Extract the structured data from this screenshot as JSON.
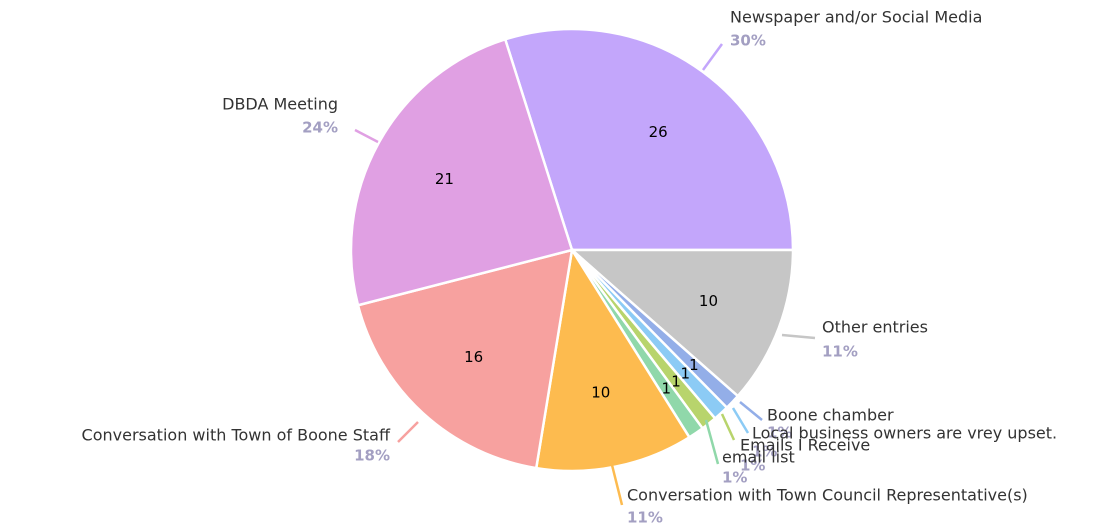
{
  "chart_data": {
    "type": "pie",
    "categories": [
      "Newspaper and/or Social Media",
      "Other entries",
      "Boone chamber",
      "Local business owners are vrey upset.",
      "Emails I Receive",
      "email list",
      "Conversation with Town Council Representative(s)",
      "Conversation with Town of Boone Staff",
      "DBDA Meeting"
    ],
    "values": [
      26,
      10,
      1,
      1,
      1,
      1,
      10,
      16,
      21
    ],
    "percent_labels": [
      "30%",
      "11%",
      "1%",
      "1%",
      "1%",
      "1%",
      "11%",
      "18%",
      "24%"
    ],
    "colors": [
      "#c3a6fb",
      "#c6c6c6",
      "#93aee8",
      "#8ccbf5",
      "#b8d46c",
      "#90d8aa",
      "#fdbb4f",
      "#f7a19f",
      "#e0a0e3"
    ]
  }
}
